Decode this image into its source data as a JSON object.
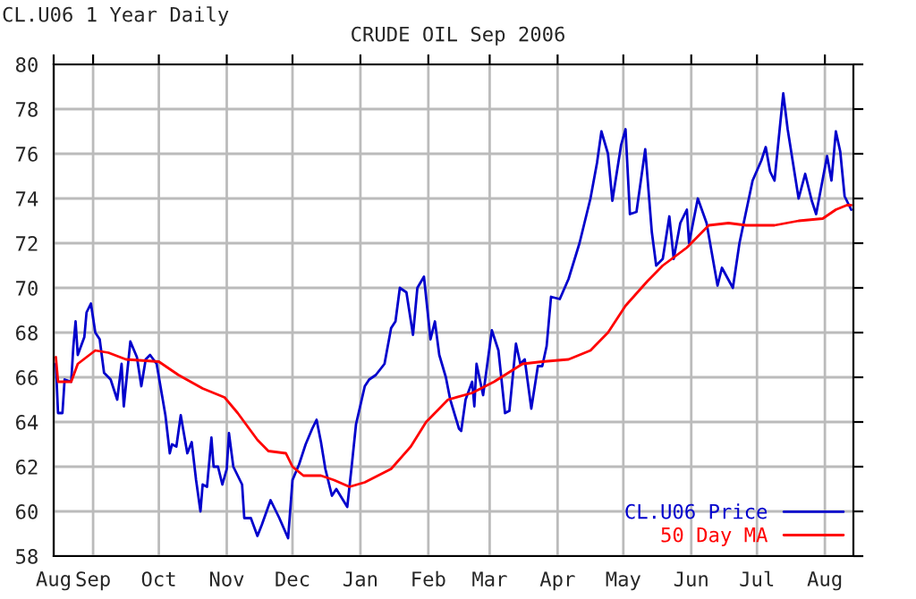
{
  "chart_data": {
    "type": "line",
    "title": "CRUDE OIL Sep 2006",
    "annotations": [
      "CL.U06 1 Year Daily"
    ],
    "xlim": [
      "2005-08-14",
      "2006-08-14"
    ],
    "xticks": [
      {
        "value": "2005-08-14",
        "label": "Aug"
      },
      {
        "value": "2005-09-01",
        "label": "Sep"
      },
      {
        "value": "2005-10-01",
        "label": "Oct"
      },
      {
        "value": "2005-11-01",
        "label": "Nov"
      },
      {
        "value": "2005-12-01",
        "label": "Dec"
      },
      {
        "value": "2006-01-01",
        "label": "Jan"
      },
      {
        "value": "2006-02-01",
        "label": "Feb"
      },
      {
        "value": "2006-03-01",
        "label": "Mar"
      },
      {
        "value": "2006-04-01",
        "label": "Apr"
      },
      {
        "value": "2006-05-01",
        "label": "May"
      },
      {
        "value": "2006-06-01",
        "label": "Jun"
      },
      {
        "value": "2006-07-01",
        "label": "Jul"
      },
      {
        "value": "2006-08-01",
        "label": "Aug"
      }
    ],
    "ylim": [
      58,
      80
    ],
    "yticks": [
      58,
      60,
      62,
      64,
      66,
      68,
      70,
      72,
      74,
      76,
      78,
      80
    ],
    "grid": true,
    "legend": "bottom right",
    "series": [
      {
        "name": "CL.U06 Price",
        "color": "#0000cc",
        "x": [
          "2005-08-15",
          "2005-08-16",
          "2005-08-18",
          "2005-08-19",
          "2005-08-22",
          "2005-08-23",
          "2005-08-24",
          "2005-08-25",
          "2005-08-28",
          "2005-08-29",
          "2005-08-31",
          "2005-09-02",
          "2005-09-04",
          "2005-09-06",
          "2005-09-09",
          "2005-09-12",
          "2005-09-14",
          "2005-09-15",
          "2005-09-18",
          "2005-09-21",
          "2005-09-23",
          "2005-09-25",
          "2005-09-27",
          "2005-09-30",
          "2005-10-04",
          "2005-10-06",
          "2005-10-07",
          "2005-10-09",
          "2005-10-11",
          "2005-10-14",
          "2005-10-16",
          "2005-10-18",
          "2005-10-20",
          "2005-10-21",
          "2005-10-23",
          "2005-10-25",
          "2005-10-26",
          "2005-10-28",
          "2005-10-30",
          "2005-11-01",
          "2005-11-02",
          "2005-11-04",
          "2005-11-08",
          "2005-11-09",
          "2005-11-12",
          "2005-11-15",
          "2005-11-17",
          "2005-11-21",
          "2005-11-25",
          "2005-11-29",
          "2005-12-01",
          "2005-12-04",
          "2005-12-07",
          "2005-12-10",
          "2005-12-12",
          "2005-12-14",
          "2005-12-16",
          "2005-12-19",
          "2005-12-21",
          "2005-12-26",
          "2005-12-28",
          "2005-12-30",
          "2006-01-03",
          "2006-01-05",
          "2006-01-08",
          "2006-01-12",
          "2006-01-15",
          "2006-01-17",
          "2006-01-19",
          "2006-01-22",
          "2006-01-25",
          "2006-01-27",
          "2006-01-30",
          "2006-02-02",
          "2006-02-04",
          "2006-02-06",
          "2006-02-09",
          "2006-02-11",
          "2006-02-15",
          "2006-02-16",
          "2006-02-18",
          "2006-02-21",
          "2006-02-22",
          "2006-02-23",
          "2006-02-26",
          "2006-03-02",
          "2006-03-05",
          "2006-03-08",
          "2006-03-10",
          "2006-03-13",
          "2006-03-15",
          "2006-03-17",
          "2006-03-20",
          "2006-03-23",
          "2006-03-25",
          "2006-03-27",
          "2006-03-29",
          "2006-04-02",
          "2006-04-06",
          "2006-04-11",
          "2006-04-13",
          "2006-04-16",
          "2006-04-19",
          "2006-04-21",
          "2006-04-24",
          "2006-04-26",
          "2006-04-30",
          "2006-05-02",
          "2006-05-04",
          "2006-05-07",
          "2006-05-11",
          "2006-05-14",
          "2006-05-16",
          "2006-05-19",
          "2006-05-22",
          "2006-05-24",
          "2006-05-27",
          "2006-05-30",
          "2006-05-31",
          "2006-06-04",
          "2006-06-08",
          "2006-06-13",
          "2006-06-15",
          "2006-06-20",
          "2006-06-23",
          "2006-06-29",
          "2006-07-03",
          "2006-07-05",
          "2006-07-07",
          "2006-07-09",
          "2006-07-13",
          "2006-07-15",
          "2006-07-20",
          "2006-07-23",
          "2006-07-26",
          "2006-07-28",
          "2006-08-02",
          "2006-08-04",
          "2006-08-06",
          "2006-08-08",
          "2006-08-10",
          "2006-08-13"
        ],
        "values": [
          66.6,
          64.4,
          64.4,
          65.9,
          65.8,
          67.4,
          68.5,
          67.0,
          67.8,
          68.9,
          69.3,
          68.0,
          67.7,
          66.2,
          65.9,
          65.0,
          66.6,
          64.7,
          67.6,
          66.9,
          65.6,
          66.8,
          67.0,
          66.6,
          64.3,
          62.6,
          63.0,
          62.9,
          64.3,
          62.6,
          63.1,
          61.4,
          60.0,
          61.2,
          61.1,
          63.3,
          62.0,
          62.0,
          61.2,
          61.9,
          63.5,
          62.0,
          61.2,
          59.7,
          59.7,
          58.9,
          59.4,
          60.5,
          59.7,
          58.8,
          61.4,
          62.1,
          63.0,
          63.7,
          64.1,
          63.1,
          61.9,
          60.7,
          61.0,
          60.2,
          62.0,
          63.9,
          65.6,
          65.9,
          66.1,
          66.6,
          68.2,
          68.5,
          70.0,
          69.8,
          67.9,
          70.0,
          70.5,
          67.7,
          68.5,
          67.0,
          66.0,
          65.0,
          63.7,
          63.6,
          65.0,
          65.8,
          64.7,
          66.6,
          65.2,
          68.1,
          67.2,
          64.4,
          64.5,
          67.5,
          66.6,
          66.8,
          64.6,
          66.5,
          66.5,
          67.4,
          69.6,
          69.5,
          70.4,
          72.0,
          72.8,
          74.0,
          75.6,
          77.0,
          76.0,
          73.9,
          76.4,
          77.1,
          73.3,
          73.4,
          76.2,
          72.5,
          71.0,
          71.3,
          73.2,
          71.3,
          72.9,
          73.5,
          72.0,
          74.0,
          72.9,
          70.1,
          70.9,
          70.0,
          72.0,
          74.8,
          75.7,
          76.3,
          75.2,
          74.8,
          78.7,
          77.1,
          74.0,
          75.1,
          73.9,
          73.3,
          75.9,
          74.8,
          77.0,
          76.1,
          74.1,
          73.5
        ]
      },
      {
        "name": "50 Day MA",
        "color": "#ff0000",
        "x": [
          "2005-08-15",
          "2005-08-16",
          "2005-08-22",
          "2005-08-25",
          "2005-09-02",
          "2005-09-08",
          "2005-09-16",
          "2005-10-01",
          "2005-10-10",
          "2005-10-21",
          "2005-10-31",
          "2005-11-06",
          "2005-11-15",
          "2005-11-20",
          "2005-11-28",
          "2005-12-01",
          "2005-12-06",
          "2005-12-14",
          "2005-12-20",
          "2005-12-27",
          "2006-01-03",
          "2006-01-15",
          "2006-01-24",
          "2006-01-31",
          "2006-02-10",
          "2006-02-21",
          "2006-03-03",
          "2006-03-16",
          "2006-03-25",
          "2006-04-06",
          "2006-04-16",
          "2006-04-24",
          "2006-05-02",
          "2006-05-12",
          "2006-05-19",
          "2006-05-30",
          "2006-06-09",
          "2006-06-18",
          "2006-06-26",
          "2006-07-09",
          "2006-07-20",
          "2006-07-31",
          "2006-08-06",
          "2006-08-11",
          "2006-08-13"
        ],
        "values": [
          66.9,
          65.8,
          65.8,
          66.6,
          67.2,
          67.1,
          66.8,
          66.7,
          66.1,
          65.5,
          65.1,
          64.4,
          63.2,
          62.7,
          62.6,
          62.0,
          61.6,
          61.6,
          61.4,
          61.1,
          61.3,
          61.9,
          62.9,
          64.0,
          65.0,
          65.3,
          65.8,
          66.6,
          66.7,
          66.8,
          67.2,
          68.0,
          69.2,
          70.3,
          71.0,
          71.8,
          72.8,
          72.9,
          72.8,
          72.8,
          73.0,
          73.1,
          73.5,
          73.7,
          73.7
        ]
      }
    ]
  }
}
